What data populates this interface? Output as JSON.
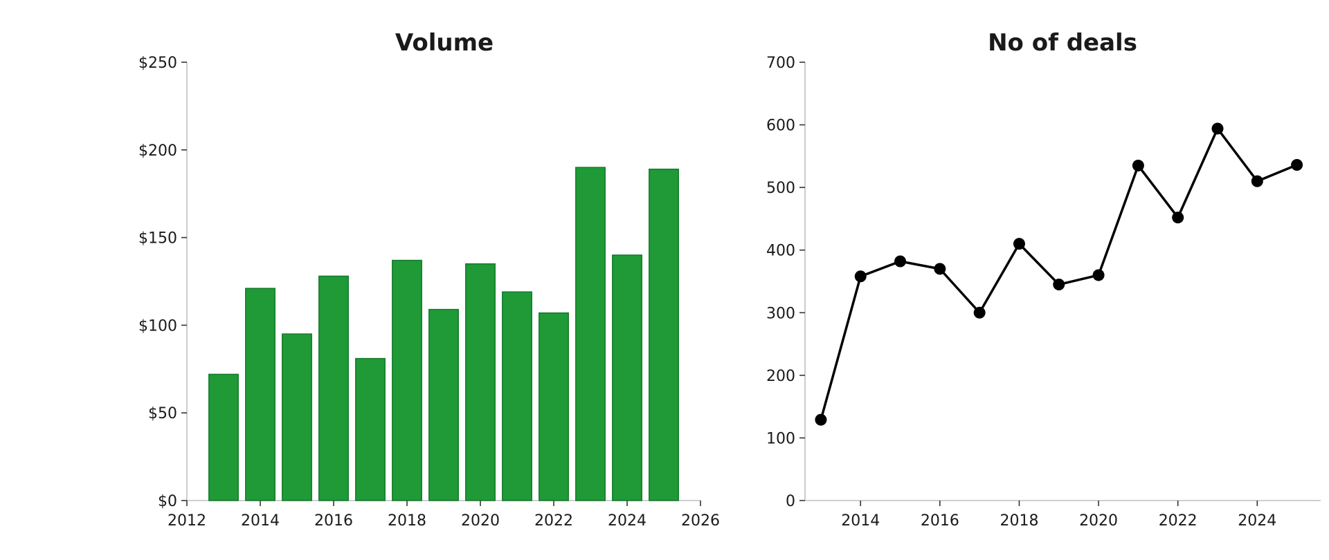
{
  "chart_data": [
    {
      "type": "bar",
      "title": "Volume",
      "xlabel": "",
      "ylabel": "",
      "x": [
        2013,
        2014,
        2015,
        2016,
        2017,
        2018,
        2019,
        2020,
        2021,
        2022,
        2023,
        2024,
        2025
      ],
      "values": [
        72,
        121,
        95,
        128,
        81,
        137,
        109,
        135,
        119,
        107,
        190,
        140,
        189
      ],
      "xlim": [
        2012,
        2026
      ],
      "ylim": [
        0,
        250
      ],
      "xticks": [
        2012,
        2014,
        2016,
        2018,
        2020,
        2022,
        2024,
        2026
      ],
      "yticks": [
        0,
        50,
        100,
        150,
        200,
        250
      ],
      "ytick_labels": [
        "$0",
        "$50",
        "$100",
        "$150",
        "$200",
        "$250"
      ],
      "color": "#1f9a37",
      "edge_color": "#14792a",
      "grid": false
    },
    {
      "type": "line",
      "title": "No of deals",
      "xlabel": "",
      "ylabel": "",
      "x": [
        2013,
        2014,
        2015,
        2016,
        2017,
        2018,
        2019,
        2020,
        2021,
        2022,
        2023,
        2024,
        2025
      ],
      "values": [
        129,
        358,
        382,
        370,
        300,
        410,
        345,
        360,
        535,
        452,
        594,
        510,
        536
      ],
      "xlim": [
        2012.6,
        2025.6
      ],
      "ylim": [
        0,
        700
      ],
      "xticks": [
        2014,
        2016,
        2018,
        2020,
        2022,
        2024
      ],
      "yticks": [
        0,
        100,
        200,
        300,
        400,
        500,
        600,
        700
      ],
      "ytick_labels": [
        "0",
        "100",
        "200",
        "300",
        "400",
        "500",
        "600",
        "700"
      ],
      "color": "#000000",
      "marker": "circle",
      "grid": false
    }
  ]
}
